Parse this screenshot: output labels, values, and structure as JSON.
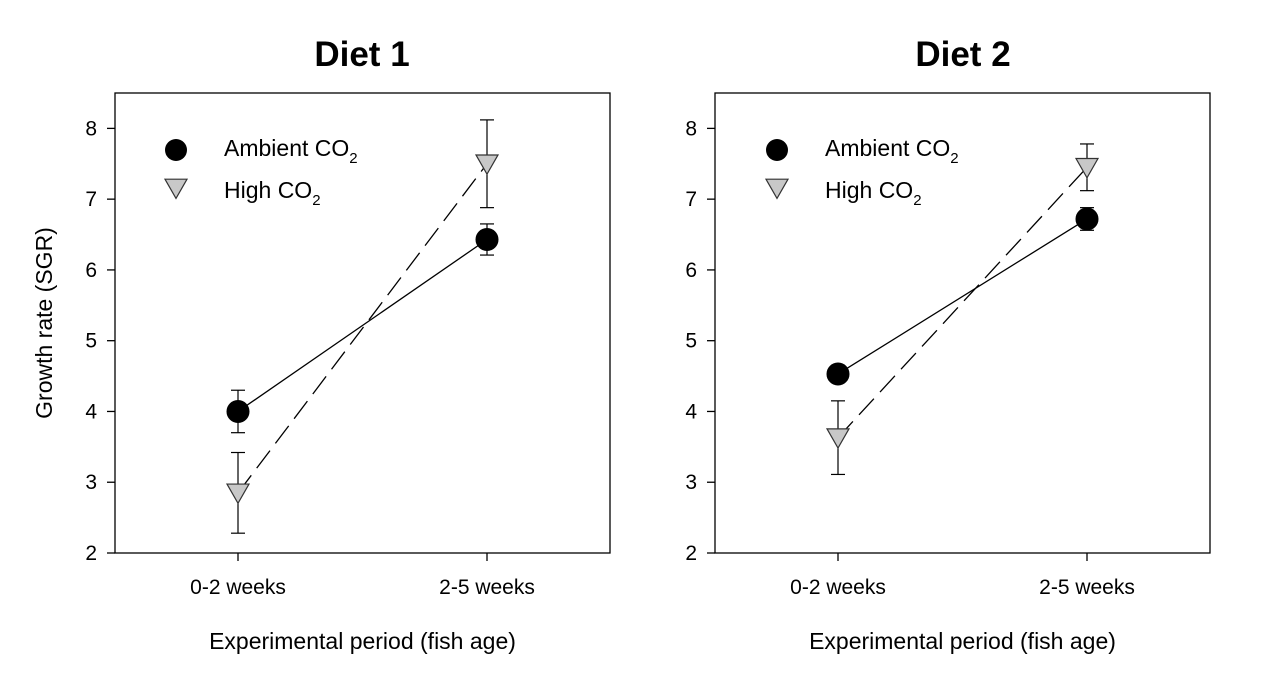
{
  "colors": {
    "ambient": "#000000",
    "high": "#c8c8c8",
    "axis": "#000000"
  },
  "chart_data": [
    {
      "type": "line",
      "title": "Diet 1",
      "xlabel": "Experimental period (fish age)",
      "ylabel": "Growth rate (SGR)",
      "categories": [
        "0-2 weeks",
        "2-5 weeks"
      ],
      "ylim": [
        2,
        8.5
      ],
      "yticks": [
        2,
        3,
        4,
        5,
        6,
        7,
        8
      ],
      "grid": false,
      "legend_position": "top-left",
      "series": [
        {
          "name": "Ambient CO",
          "subscript": "2",
          "marker": "circle",
          "line": "solid",
          "values": [
            4.0,
            6.43
          ],
          "errors": [
            0.3,
            0.22
          ]
        },
        {
          "name": "High CO",
          "subscript": "2",
          "marker": "triangle-down",
          "line": "dashed",
          "values": [
            2.85,
            7.5
          ],
          "errors": [
            0.57,
            0.62
          ]
        }
      ]
    },
    {
      "type": "line",
      "title": "Diet 2",
      "xlabel": "Experimental period (fish age)",
      "ylabel": "",
      "categories": [
        "0-2 weeks",
        "2-5 weeks"
      ],
      "ylim": [
        2,
        8.5
      ],
      "yticks": [
        2,
        3,
        4,
        5,
        6,
        7,
        8
      ],
      "grid": false,
      "legend_position": "top-left",
      "series": [
        {
          "name": "Ambient CO",
          "subscript": "2",
          "marker": "circle",
          "line": "solid",
          "values": [
            4.53,
            6.72
          ],
          "errors": [
            0.12,
            0.16
          ]
        },
        {
          "name": "High CO",
          "subscript": "2",
          "marker": "triangle-down",
          "line": "dashed",
          "values": [
            3.63,
            7.45
          ],
          "errors": [
            0.52,
            0.33
          ]
        }
      ]
    }
  ]
}
